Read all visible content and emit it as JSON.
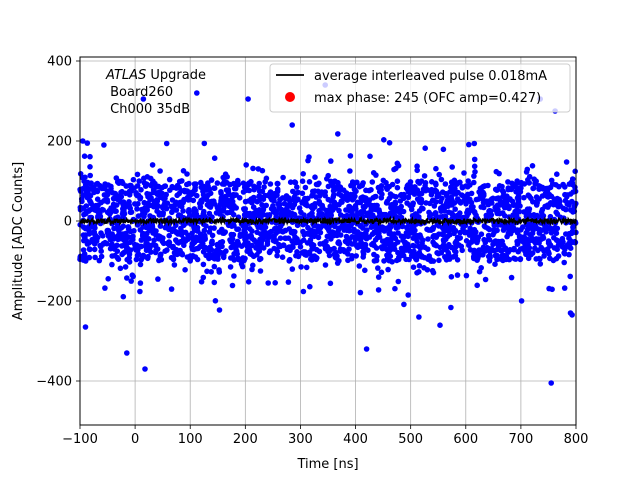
{
  "chart_data": {
    "type": "scatter",
    "title": "",
    "xlabel": "Time [ns]",
    "ylabel": "Amplitude [ADC Counts]",
    "xlim": [
      -100,
      800
    ],
    "ylim": [
      -510,
      410
    ],
    "xticks": [
      -100,
      0,
      100,
      200,
      300,
      400,
      500,
      600,
      700,
      800
    ],
    "yticks": [
      -400,
      -200,
      0,
      200,
      400
    ],
    "xtick_labels": [
      "−100",
      "0",
      "100",
      "200",
      "300",
      "400",
      "500",
      "600",
      "700",
      "800"
    ],
    "ytick_labels": [
      "−400",
      "−200",
      "0",
      "200",
      "400"
    ],
    "grid": true,
    "legend_position": "top-right",
    "annotation": {
      "line1_italic": "ATLAS",
      "line1_rest": " Upgrade",
      "line2": " Board260",
      "line3": " Ch000 35dB"
    },
    "series": [
      {
        "name": "average interleaved pulse 0.018mA",
        "kind": "line",
        "color": "#000000",
        "x_range": [
          -100,
          800
        ],
        "level": 0,
        "noise_amplitude": 6
      },
      {
        "name": "max phase: 245 (OFC amp=0.427)",
        "kind": "marker",
        "color": "#ff0000",
        "x": [],
        "y": []
      },
      {
        "name": "",
        "kind": "scatter",
        "color": "#0000ff",
        "x_range": [
          -100,
          800
        ],
        "spread_sigma": 60,
        "dense_band": [
          -100,
          100
        ],
        "outliers": [
          {
            "x": -95,
            "y": 200
          },
          {
            "x": 15,
            "y": 305
          },
          {
            "x": 112,
            "y": 320
          },
          {
            "x": 205,
            "y": 305
          },
          {
            "x": 285,
            "y": 240
          },
          {
            "x": 345,
            "y": 340
          },
          {
            "x": 735,
            "y": 305
          },
          {
            "x": 762,
            "y": 275
          },
          {
            "x": 755,
            "y": -405
          },
          {
            "x": 18,
            "y": -370
          },
          {
            "x": -15,
            "y": -330
          },
          {
            "x": -90,
            "y": -265
          },
          {
            "x": 420,
            "y": -320
          },
          {
            "x": 515,
            "y": -240
          },
          {
            "x": 790,
            "y": -230
          }
        ]
      }
    ]
  }
}
